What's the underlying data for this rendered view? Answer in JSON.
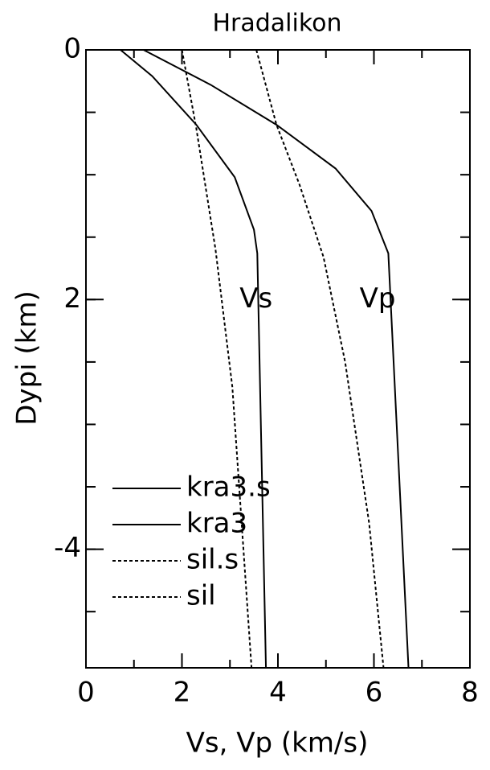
{
  "chart_data": {
    "type": "line",
    "title": "Hradalikon",
    "xlabel": "Vs, Vp (km/s)",
    "ylabel": "Dypi (km)",
    "xlim": [
      0,
      8
    ],
    "xticks": [
      0,
      2,
      4,
      6,
      8
    ],
    "ylim": [
      -4.95,
      0
    ],
    "yticks": [
      0,
      {
        "value": -2,
        "label": "2"
      },
      -4
    ],
    "legend": "lower left",
    "annotations": [
      {
        "text": "Vs",
        "x": 3.2,
        "y": -2
      },
      {
        "text": "Vp",
        "x": 5.7,
        "y": -2
      }
    ],
    "series": [
      {
        "name": "kra3.s",
        "color": "#000000",
        "style": "solid",
        "x": [
          0.72,
          1.38,
          2.3,
          3.1,
          3.5,
          3.57,
          3.75
        ],
        "values": [
          0,
          -0.21,
          -0.6,
          -1.02,
          -1.44,
          -1.63,
          -4.95
        ]
      },
      {
        "name": "kra3",
        "color": "#000000",
        "style": "solid",
        "x": [
          1.2,
          2.6,
          3.97,
          5.2,
          5.95,
          6.3,
          6.72
        ],
        "values": [
          0,
          -0.28,
          -0.6,
          -0.95,
          -1.29,
          -1.63,
          -4.95
        ]
      },
      {
        "name": "sil.s",
        "color": "#000000",
        "style": "dotted",
        "x": [
          2.0,
          2.3,
          2.7,
          3.05,
          3.45
        ],
        "values": [
          0,
          -0.63,
          -1.6,
          -2.7,
          -4.95
        ]
      },
      {
        "name": "sil",
        "color": "#000000",
        "style": "dotted",
        "x": [
          3.55,
          3.97,
          4.45,
          4.95,
          5.4,
          5.9,
          6.2
        ],
        "values": [
          0,
          -0.6,
          -1.08,
          -1.66,
          -2.5,
          -3.79,
          -4.95
        ]
      }
    ]
  }
}
